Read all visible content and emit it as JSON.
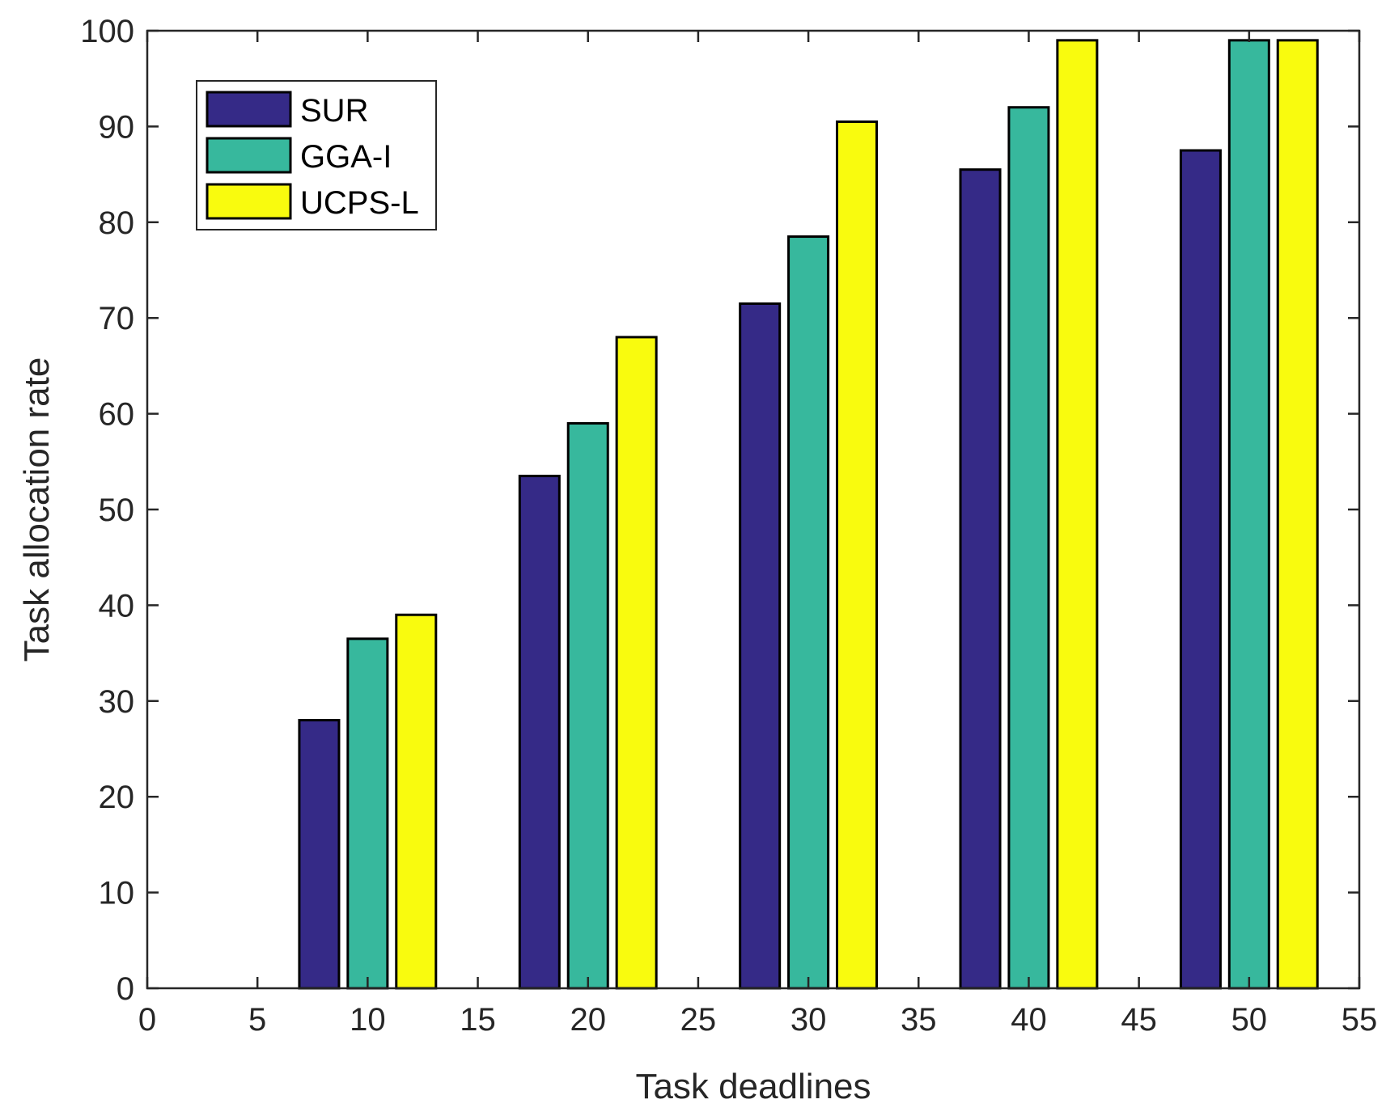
{
  "chart_data": {
    "type": "bar",
    "title": "",
    "xlabel": "Task deadlines",
    "ylabel": "Task allocation rate",
    "xlim": [
      0,
      55
    ],
    "ylim": [
      0,
      100
    ],
    "xticks": [
      0,
      5,
      10,
      15,
      20,
      25,
      30,
      35,
      40,
      45,
      50,
      55
    ],
    "yticks": [
      0,
      10,
      20,
      30,
      40,
      50,
      60,
      70,
      80,
      90,
      100
    ],
    "categories": [
      10,
      20,
      30,
      40,
      50
    ],
    "bar_width_data_units": 1.8,
    "group_offsets_data_units": [
      -2.2,
      0,
      2.2
    ],
    "legend_position": "top-left",
    "series": [
      {
        "name": "SUR",
        "color": "#352A87",
        "values": [
          28,
          53.5,
          71.5,
          85.5,
          87.5
        ]
      },
      {
        "name": "GGA-I",
        "color": "#37B89D",
        "values": [
          36.5,
          59,
          78.5,
          92,
          99
        ]
      },
      {
        "name": "UCPS-L",
        "color": "#F9FB0E",
        "values": [
          39,
          68,
          90.5,
          99,
          99
        ]
      }
    ]
  }
}
